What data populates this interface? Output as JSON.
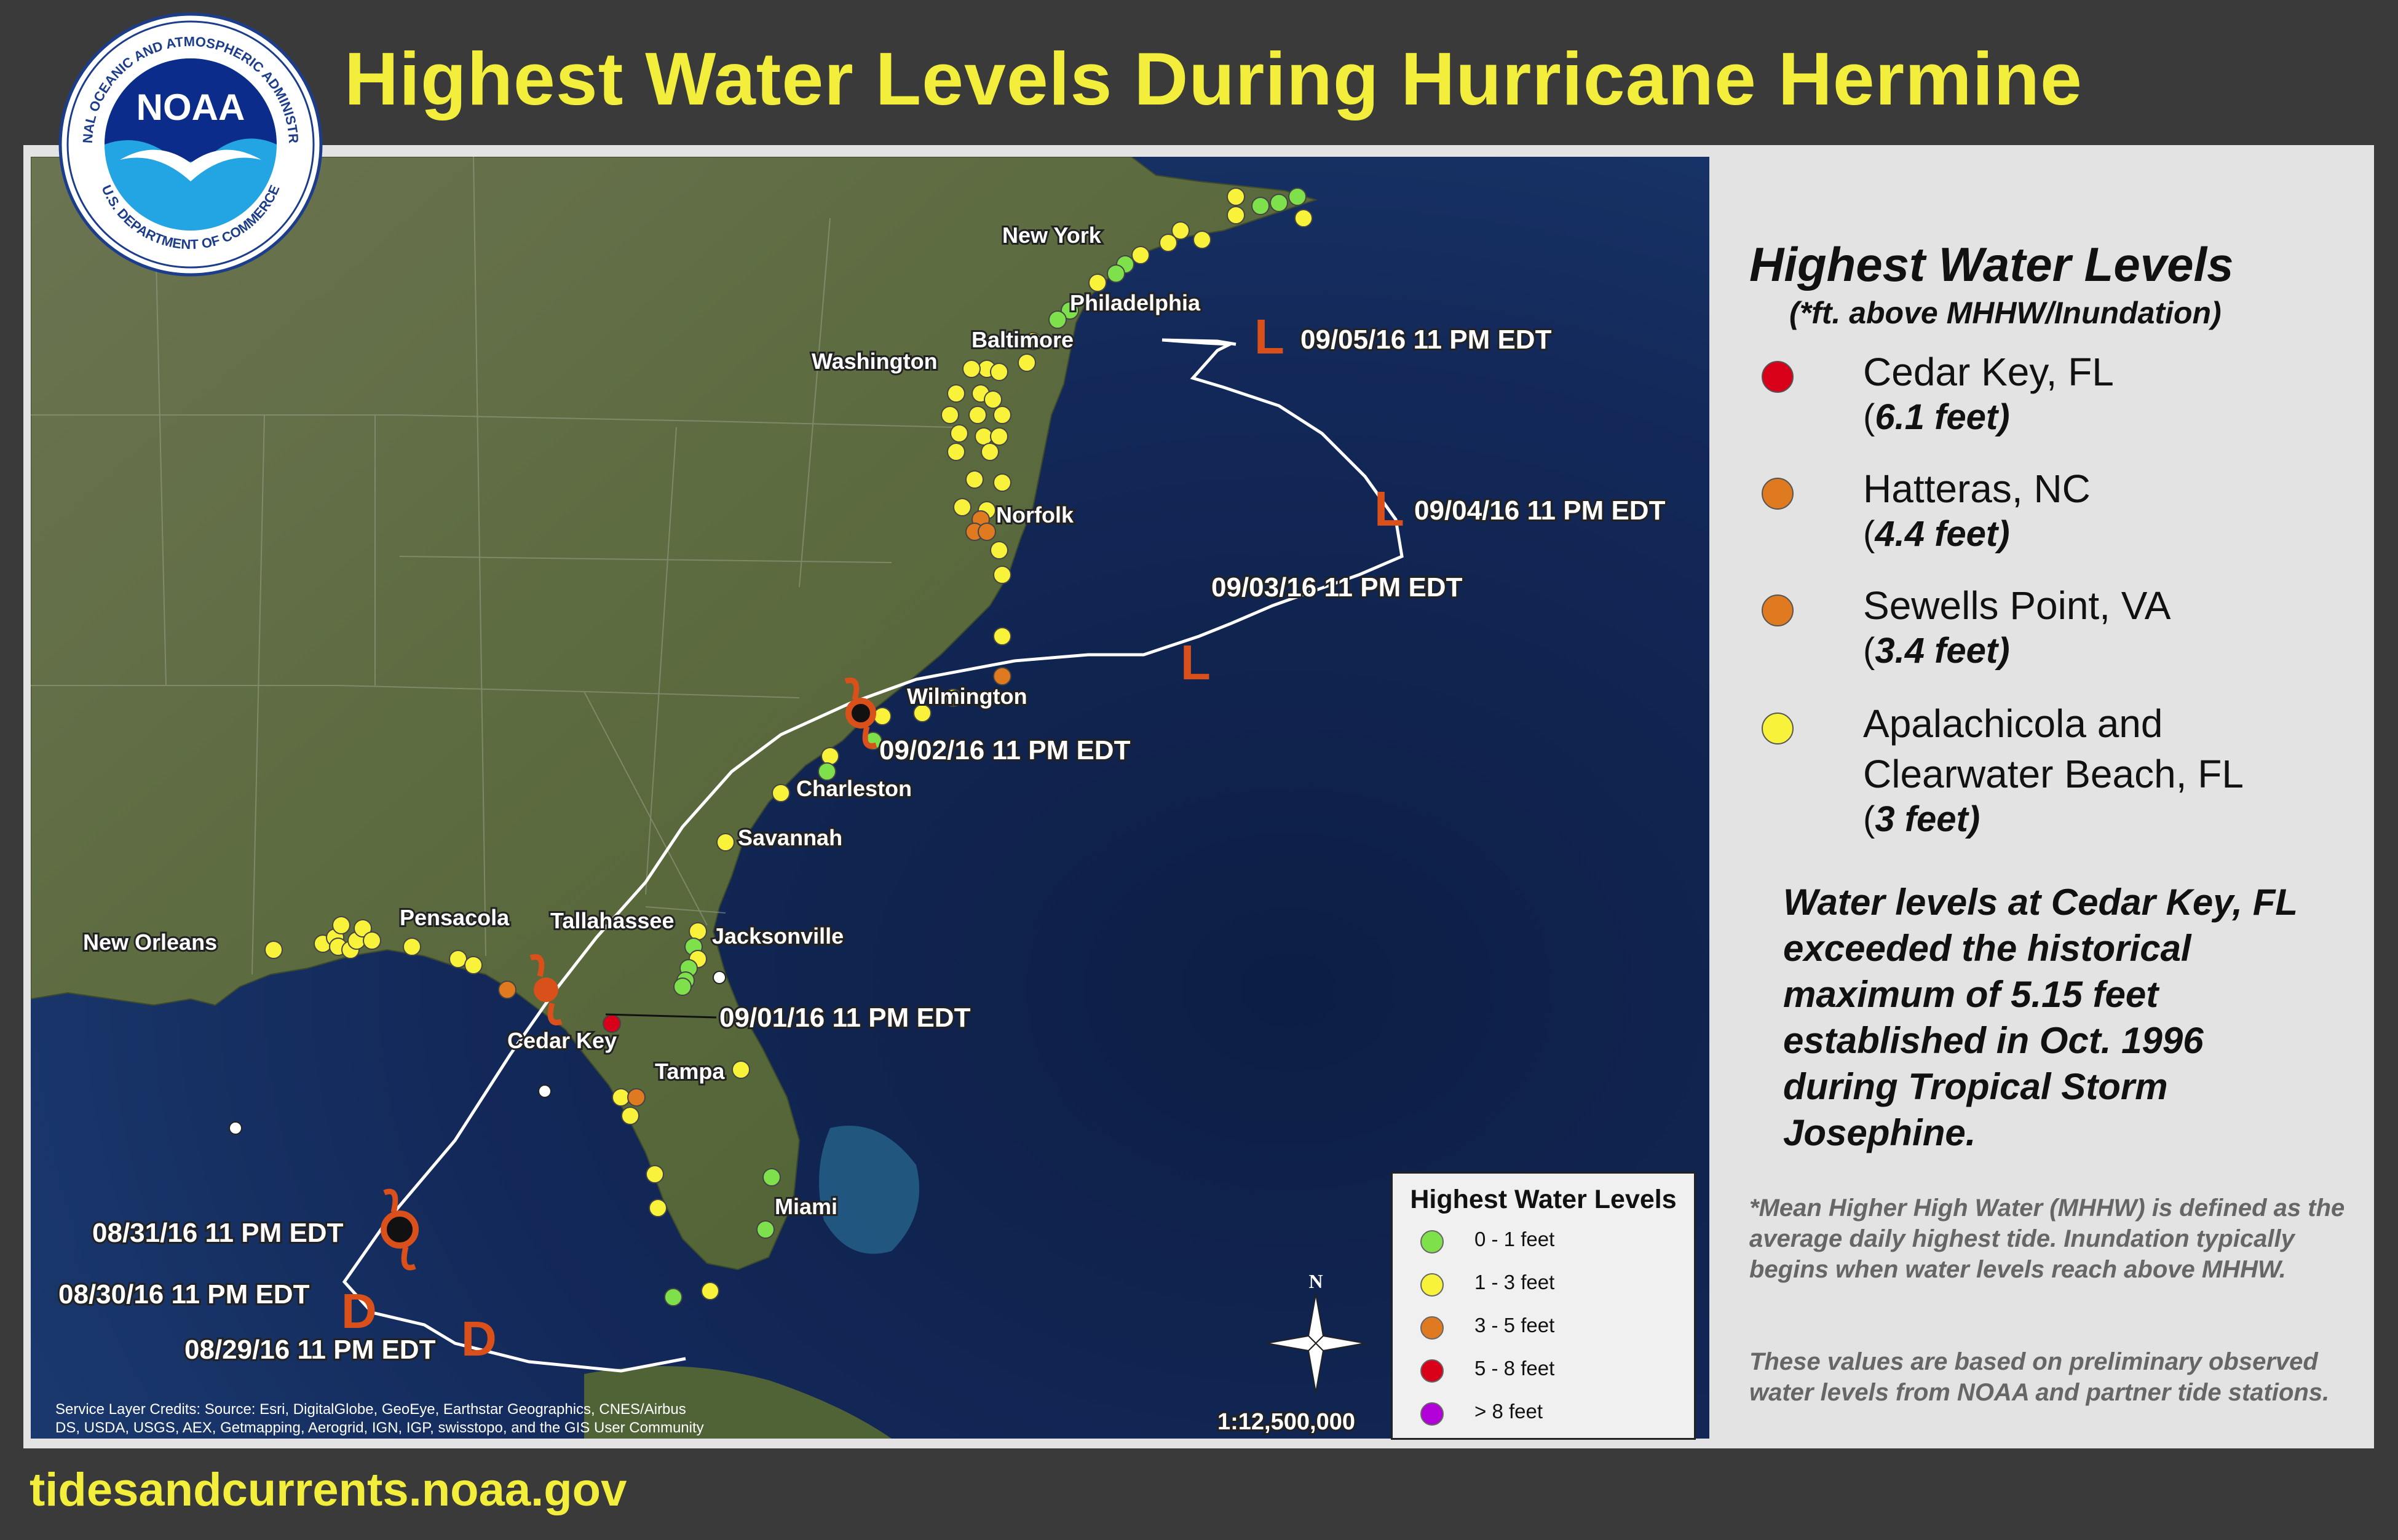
{
  "title": "Highest Water Levels During Hurricane Hermine",
  "logo": {
    "center_text": "NOAA",
    "ring_top": "NATIONAL OCEANIC AND ATMOSPHERIC ADMINISTRATION",
    "ring_bottom": "U.S. DEPARTMENT OF COMMERCE",
    "icon": "noaa-seagull-logo"
  },
  "footer_url": "tidesandcurrents.noaa.gov",
  "colors": {
    "title": "#f2ee3b",
    "background": "#3a3a3a",
    "level_0_1": "#7ee04a",
    "level_1_3": "#f8f33a",
    "level_3_5": "#e07a20",
    "level_5_8": "#d9001a",
    "level_8_plus": "#b100d8",
    "track": "#ffffff",
    "storm_symbol": "#d9501a"
  },
  "right_panel": {
    "heading": "Highest Water Levels",
    "subheading": "(*ft. above MHHW/Inundation)",
    "records": [
      {
        "location": "Cedar Key, FL",
        "value_prefix": "(",
        "value": "6.1 feet)",
        "color": "#d9001a"
      },
      {
        "location": "Hatteras, NC",
        "value_prefix": "(",
        "value": "4.4 feet)",
        "color": "#e07a20"
      },
      {
        "location": "Sewells Point, VA",
        "value_prefix": "(",
        "value": "3.4 feet)",
        "color": "#e07a20"
      },
      {
        "location": "Apalachicola and",
        "location_2": "Clearwater Beach, FL",
        "value_prefix": "(",
        "value": "3 feet)",
        "color": "#f8f33a"
      }
    ],
    "note": "Water levels at Cedar Key, FL exceeded the historical maximum of 5.15 feet established in Oct. 1996 during Tropical Storm Josephine.",
    "footnote_1": "*Mean Higher High Water (MHHW) is defined as the average daily highest tide. Inundation typically begins when water levels reach above MHHW.",
    "footnote_2": "These values are based on preliminary observed water levels from NOAA and partner tide stations."
  },
  "legend": {
    "title": "Highest Water Levels",
    "items": [
      {
        "label": "0 - 1 feet",
        "color": "#7ee04a"
      },
      {
        "label": "1 - 3 feet",
        "color": "#f8f33a"
      },
      {
        "label": "3 - 5 feet",
        "color": "#e07a20"
      },
      {
        "label": "5 - 8 feet",
        "color": "#d9001a"
      },
      {
        "label": "> 8 feet",
        "color": "#b100d8"
      }
    ]
  },
  "map": {
    "scale": "1:12,500,000",
    "north_label": "N",
    "credits_line1": "Service Layer Credits: Source: Esri, DigitalGlobe, GeoEye, Earthstar Geographics, CNES/Airbus",
    "credits_line2": "DS, USDA, USGS, AEX, Getmapping, Aerogrid, IGN, IGP, swisstopo, and the GIS User Community",
    "cities": [
      "New York",
      "Philadelphia",
      "Baltimore",
      "Washington",
      "Norfolk",
      "Wilmington",
      "Charleston",
      "Savannah",
      "Jacksonville",
      "Tallahassee",
      "Pensacola",
      "New Orleans",
      "Cedar Key",
      "Tampa",
      "Miami"
    ],
    "track_points": [
      {
        "label": "08/29/16 11 PM EDT",
        "symbol": "D"
      },
      {
        "label": "08/30/16 11 PM EDT",
        "symbol": "D"
      },
      {
        "label": "08/31/16 11 PM EDT",
        "symbol": "hurricane"
      },
      {
        "label": "09/01/16 11 PM EDT",
        "symbol": "hurricane"
      },
      {
        "label": "09/02/16 11 PM EDT",
        "symbol": "hurricane"
      },
      {
        "label": "09/03/16 11 PM EDT",
        "symbol": "L"
      },
      {
        "label": "09/04/16 11 PM EDT",
        "symbol": "L"
      },
      {
        "label": "09/05/16 11 PM EDT",
        "symbol": "L"
      }
    ]
  }
}
